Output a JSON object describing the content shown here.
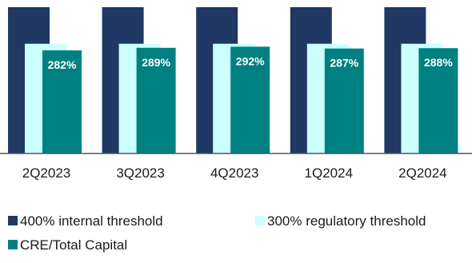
{
  "chart_data": {
    "type": "bar",
    "categories": [
      "2Q2023",
      "3Q2023",
      "4Q2023",
      "1Q2024",
      "2Q2024"
    ],
    "series": [
      {
        "name": "400% internal threshold",
        "values": [
          400,
          400,
          400,
          400,
          400
        ],
        "color": "#1f3864"
      },
      {
        "name": "300% regulatory threshold",
        "values": [
          300,
          300,
          300,
          300,
          300
        ],
        "color": "#ccffff"
      },
      {
        "name": "CRE/Total Capital",
        "values": [
          282,
          289,
          292,
          287,
          288
        ],
        "color": "#008080"
      }
    ],
    "data_labels": [
      "282%",
      "289%",
      "292%",
      "287%",
      "288%"
    ],
    "ylim": [
      0,
      400
    ],
    "grid": false,
    "legend": "bottom"
  }
}
